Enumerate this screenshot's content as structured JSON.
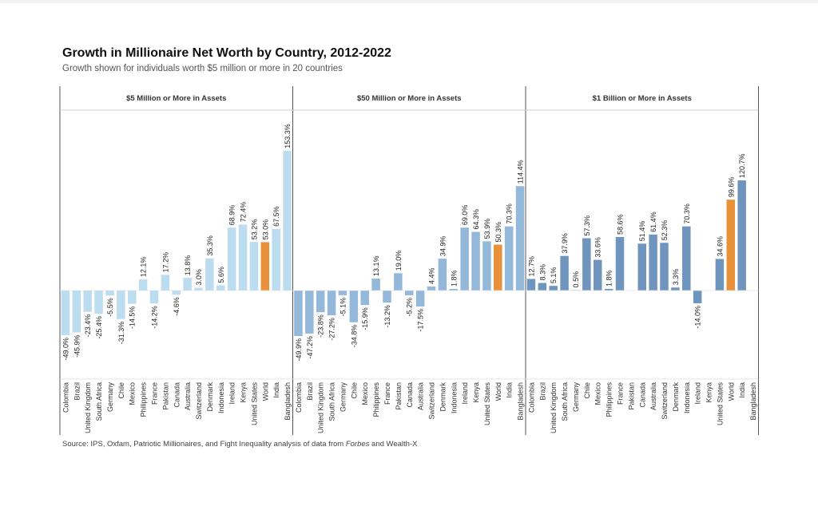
{
  "title": "Growth in Millionaire Net Worth by Country, 2012-2022",
  "subtitle": "Growth shown for individuals worth $5 million or more in 20 countries",
  "source": {
    "prefix": "Source: IPS, Oxfam, Patriotic Millionaires, and Fight Inequality analysis of data from ",
    "italic": "Forbes",
    "suffix": " and Wealth-X"
  },
  "colors": {
    "panel1": "#bcdcf0",
    "panel2": "#93b8da",
    "panel3": "#6f95be",
    "world": "#e8913a",
    "frame": "#555555",
    "header_line": "#cccccc"
  },
  "chart_data": [
    {
      "type": "bar",
      "panel_title": "$5 Million or More in Assets",
      "categories": [
        "Colombia",
        "Brazil",
        "United Kingdom",
        "South Africa",
        "Germany",
        "Chile",
        "Mexico",
        "Philippines",
        "France",
        "Pakistan",
        "Canada",
        "Australia",
        "Switzerland",
        "Denmark",
        "Indonesia",
        "Ireland",
        "Kenya",
        "United States",
        "World",
        "India",
        "Bangladesh"
      ],
      "values": [
        -49.0,
        -45.9,
        -23.4,
        -25.4,
        -5.5,
        -31.3,
        -14.5,
        12.1,
        -14.2,
        17.2,
        -4.6,
        13.8,
        3.0,
        35.3,
        5.6,
        68.9,
        72.4,
        53.2,
        53.0,
        67.5,
        153.3
      ],
      "labels": [
        "-49.0%",
        "-45.9%",
        "-23.4%",
        "-25.4%",
        "-5.5%",
        "-31.3%",
        "-14.5%",
        "12.1%",
        "-14.2%",
        "17.2%",
        "-4.6%",
        "13.8%",
        "3.0%",
        "35.3%",
        "5.6%",
        "68.9%",
        "72.4%",
        "53.2%",
        "53.0%",
        "67.5%",
        "153.3%"
      ],
      "highlight": "World",
      "ylim": [
        -65,
        160
      ]
    },
    {
      "type": "bar",
      "panel_title": "$50 Million or More in Assets",
      "categories": [
        "Colombia",
        "Brazil",
        "United Kingdom",
        "South Africa",
        "Germany",
        "Chile",
        "Mexico",
        "Philippines",
        "France",
        "Pakistan",
        "Canada",
        "Australia",
        "Switzerland",
        "Denmark",
        "Indonesia",
        "Ireland",
        "Kenya",
        "United States",
        "World",
        "India",
        "Bangladesh"
      ],
      "values": [
        -49.9,
        -47.2,
        -23.8,
        -27.2,
        -5.1,
        -34.8,
        -15.9,
        13.1,
        -13.2,
        19.0,
        -5.2,
        -17.5,
        4.4,
        34.9,
        1.8,
        69.0,
        64.3,
        53.9,
        50.3,
        70.3,
        114.4
      ],
      "labels": [
        "-49.9%",
        "-47.2%",
        "-23.8%",
        "-27.2%",
        "-5.1%",
        "-34.8%",
        "-15.9%",
        "13.1%",
        "-13.2%",
        "19.0%",
        "-5.2%",
        "-17.5%",
        "4.4%",
        "34.9%",
        "1.8%",
        "69.0%",
        "64.3%",
        "53.9%",
        "50.3%",
        "70.3%",
        "114.4%"
      ],
      "highlight": "World",
      "ylim": [
        -65,
        160
      ]
    },
    {
      "type": "bar",
      "panel_title": "$1 Billion or More in Assets",
      "categories": [
        "Colombia",
        "Brazil",
        "United Kingdom",
        "South Africa",
        "Germany",
        "Chile",
        "Mexico",
        "Philippines",
        "France",
        "Pakistan",
        "Canada",
        "Australia",
        "Switzerland",
        "Denmark",
        "Indonesia",
        "Ireland",
        "Kenya",
        "United States",
        "World",
        "India",
        "Bangladesh"
      ],
      "values": [
        12.7,
        8.3,
        5.1,
        37.9,
        0.5,
        57.3,
        33.6,
        1.8,
        58.6,
        null,
        51.4,
        61.4,
        52.3,
        3.3,
        70.3,
        -14.0,
        null,
        34.6,
        99.6,
        120.7,
        null
      ],
      "labels": [
        "12.7%",
        "8.3%",
        "5.1%",
        "37.9%",
        "0.5%",
        "57.3%",
        "33.6%",
        "1.8%",
        "58.6%",
        "",
        "51.4%",
        "61.4%",
        "52.3%",
        "3.3%",
        "70.3%",
        "-14.0%",
        "",
        "34.6%",
        "99.6%",
        "120.7%",
        ""
      ],
      "highlight": "World",
      "ylim": [
        -65,
        160
      ]
    }
  ]
}
